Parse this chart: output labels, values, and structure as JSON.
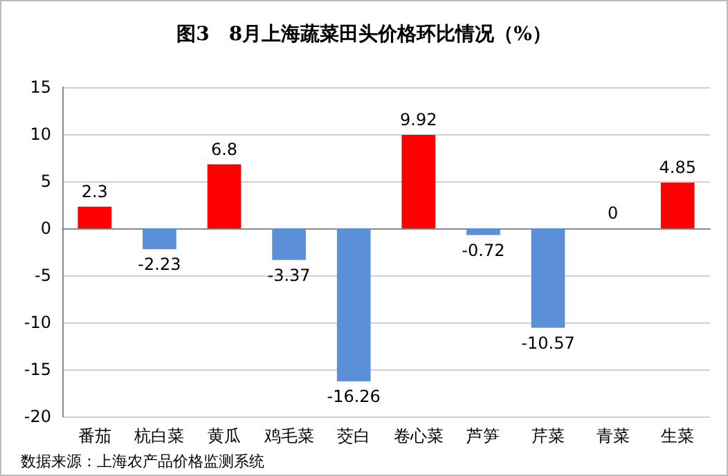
{
  "chart_data": {
    "type": "bar",
    "title": "图3　8月上海蔬菜田头价格环比情况（%）",
    "categories": [
      "番茄",
      "杭白菜",
      "黄瓜",
      "鸡毛菜",
      "茭白",
      "卷心菜",
      "芦笋",
      "芹菜",
      "青菜",
      "生菜"
    ],
    "values": [
      2.3,
      -2.23,
      6.8,
      -3.37,
      -16.26,
      9.92,
      -0.72,
      -10.57,
      0,
      4.85
    ],
    "colors": [
      "#ff0000",
      "#5b8fd6",
      "#ff0000",
      "#5b8fd6",
      "#5b8fd6",
      "#ff0000",
      "#5b8fd6",
      "#5b8fd6",
      "#ff0000",
      "#ff0000"
    ],
    "ylim": [
      -20,
      15
    ],
    "yticks": [
      -20,
      -15,
      -10,
      -5,
      0,
      5,
      10,
      15
    ],
    "grid": "y",
    "data_labels": true,
    "annotations": [
      "数据来源：上海农产品价格监测系统"
    ]
  }
}
